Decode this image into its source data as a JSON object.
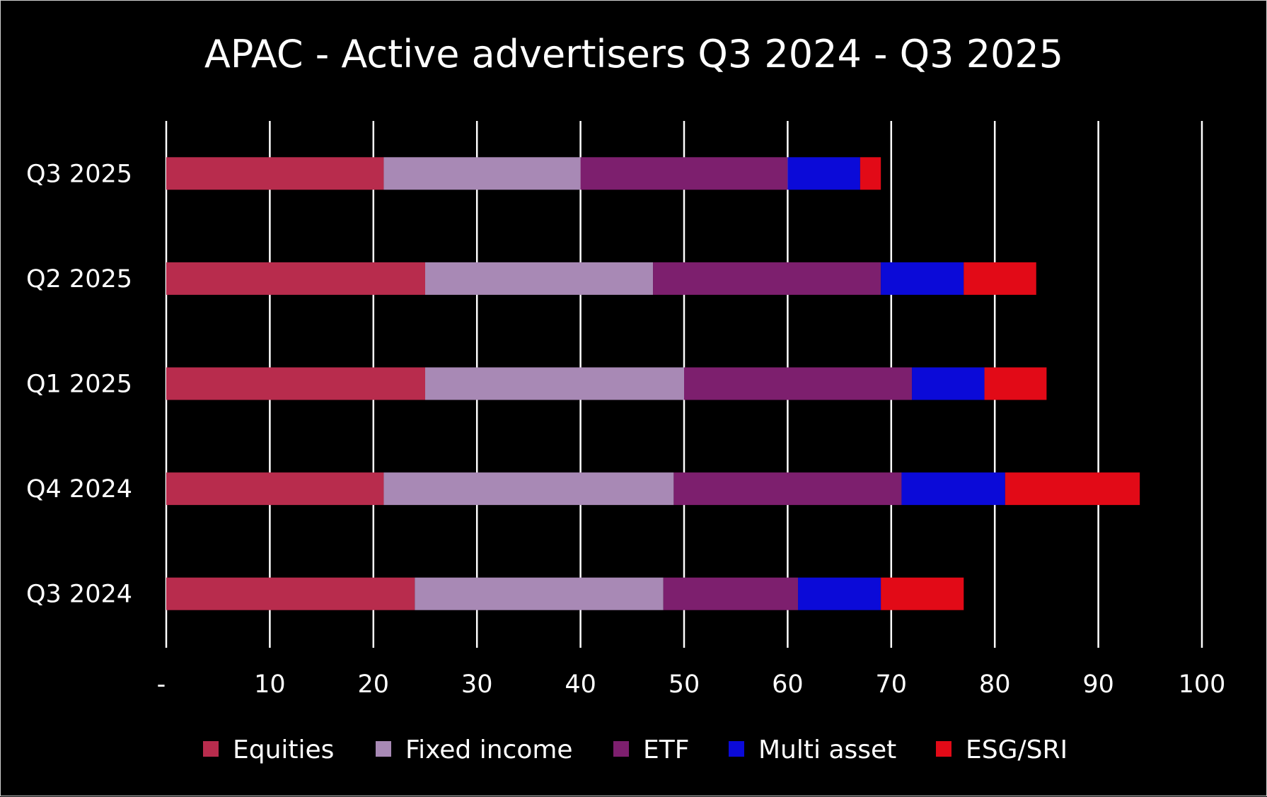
{
  "chart_data": {
    "type": "bar",
    "orientation": "horizontal",
    "stacked": true,
    "title": "APAC - Active advertisers Q3 2024 - Q3 2025",
    "categories": [
      "Q3 2025",
      "Q2 2025",
      "Q1 2025",
      "Q4 2024",
      "Q3 2024"
    ],
    "series": [
      {
        "name": "Equities",
        "color": "#B82C4D",
        "values": [
          21,
          25,
          25,
          21,
          24
        ]
      },
      {
        "name": "Fixed income",
        "color": "#A889B5",
        "values": [
          19,
          22,
          25,
          28,
          24
        ]
      },
      {
        "name": "ETF",
        "color": "#7D1F6E",
        "values": [
          20,
          22,
          22,
          22,
          13
        ]
      },
      {
        "name": "Multi asset",
        "color": "#0B0AD8",
        "values": [
          7,
          8,
          7,
          10,
          8
        ]
      },
      {
        "name": "ESG/SRI",
        "color": "#E20A17",
        "values": [
          2,
          7,
          6,
          13,
          8
        ]
      }
    ],
    "xlim": [
      0,
      100
    ],
    "x_ticks": [
      0,
      10,
      20,
      30,
      40,
      50,
      60,
      70,
      80,
      90,
      100
    ],
    "x_tick_labels": [
      "-",
      "10",
      "20",
      "30",
      "40",
      "50",
      "60",
      "70",
      "80",
      "90",
      "100"
    ],
    "xlabel": "",
    "ylabel": "",
    "grid": "vertical",
    "legend": "bottom",
    "background": "#000000",
    "text_color": "#FFFFFF"
  }
}
